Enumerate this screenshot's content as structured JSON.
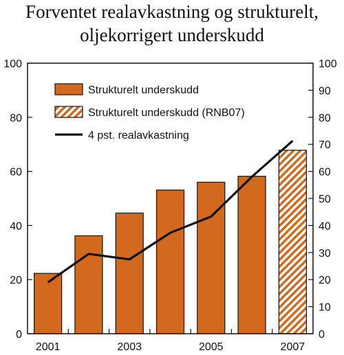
{
  "title_line1": "Forventet realavkastning og strukturelt,",
  "title_line2": "oljekorrigert underskudd",
  "colors": {
    "bar": "#D2691E",
    "bar_stroke": "#111111",
    "line": "#111111",
    "hatch_bg": "#ffffff"
  },
  "chart_data": {
    "type": "bar",
    "title": "Forventet realavkastning og strukturelt, oljekorrigert underskudd",
    "categories": [
      "2001",
      "2002",
      "2003",
      "2004",
      "2005",
      "2006",
      "2007"
    ],
    "x_tick_labels": [
      "2001",
      "2003",
      "2005",
      "2007"
    ],
    "series": [
      {
        "name": "Strukturelt underskudd",
        "kind": "bar",
        "axis": "left",
        "values": [
          22.3,
          36.2,
          44.6,
          53.1,
          56.0,
          58.2,
          null
        ]
      },
      {
        "name": "Strukturelt underskudd (RNB07)",
        "kind": "bar-hatched",
        "axis": "left",
        "values": [
          null,
          null,
          null,
          null,
          null,
          null,
          67.8
        ]
      },
      {
        "name": "4 pst. realavkastning",
        "kind": "line",
        "axis": "right",
        "values": [
          19.0,
          29.5,
          27.5,
          37.3,
          43.3,
          58.0,
          71.3
        ]
      }
    ],
    "y_left": {
      "ylim": [
        0,
        100
      ],
      "ticks": [
        "0",
        "20",
        "40",
        "60",
        "80",
        "100"
      ]
    },
    "y_right": {
      "ylim": [
        0,
        100
      ],
      "ticks": [
        "0",
        "10",
        "20",
        "30",
        "40",
        "50",
        "60",
        "70",
        "80",
        "90",
        "100"
      ]
    },
    "legend_position": "top-left",
    "grid": false
  }
}
